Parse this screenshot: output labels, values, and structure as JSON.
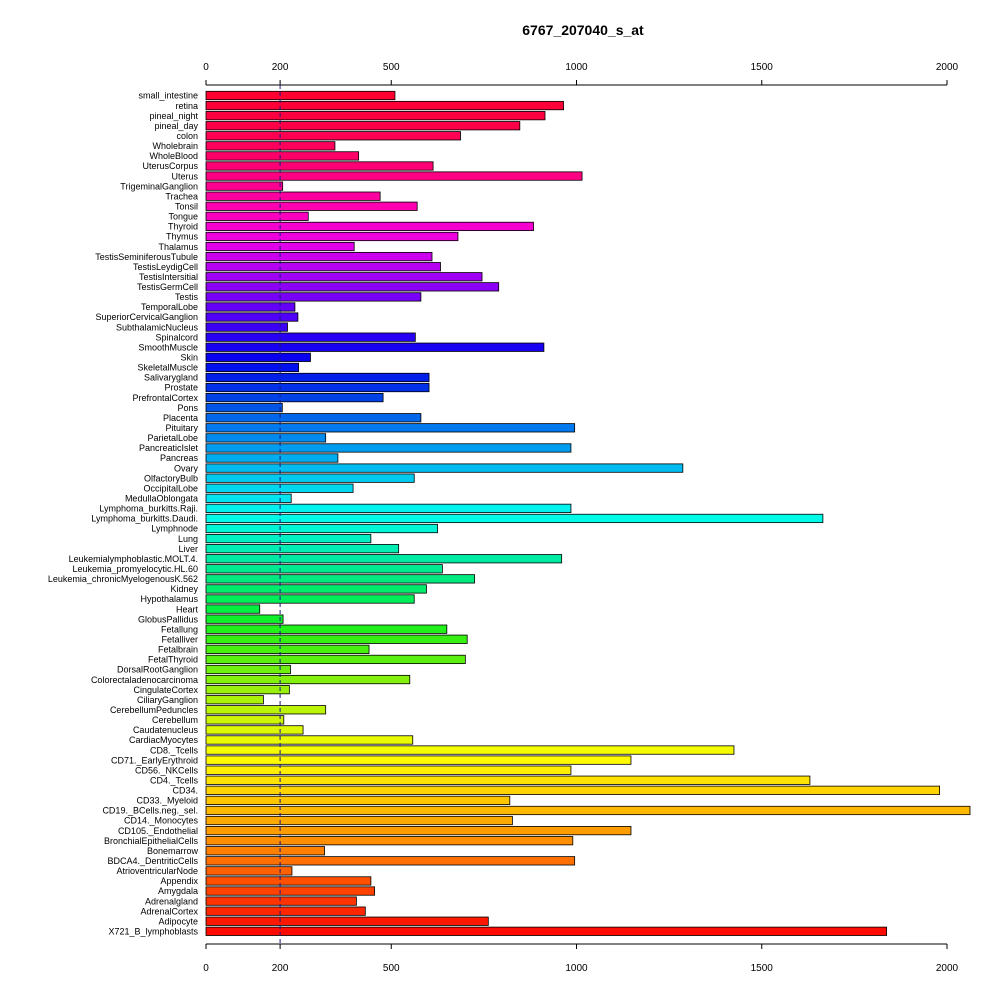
{
  "chart_data": {
    "type": "bar",
    "orientation": "horizontal",
    "title": "6767_207040_s_at",
    "xlabel": "",
    "ylabel": "",
    "xlim": [
      0,
      2000
    ],
    "x_ticks": [
      0,
      200,
      500,
      1000,
      1500,
      2000
    ],
    "reference_line": 200,
    "grid": false,
    "categories": [
      "small_intestine",
      "retina",
      "pineal_night",
      "pineal_day",
      "colon",
      "Wholebrain",
      "WholeBlood",
      "UterusCorpus",
      "Uterus",
      "TrigeminalGanglion",
      "Trachea",
      "Tonsil",
      "Tongue",
      "Thyroid",
      "Thymus",
      "Thalamus",
      "TestisSeminiferousTubule",
      "TestisLeydigCell",
      "TestisIntersitial",
      "TestisGermCell",
      "Testis",
      "TemporalLobe",
      "SuperiorCervicalGanglion",
      "SubthalamicNucleus",
      "Spinalcord",
      "SmoothMuscle",
      "Skin",
      "SkeletalMuscle",
      "Salivarygland",
      "Prostate",
      "PrefrontalCortex",
      "Pons",
      "Placenta",
      "Pituitary",
      "ParietalLobe",
      "PancreaticIslet",
      "Pancreas",
      "Ovary",
      "OlfactoryBulb",
      "OccipitalLobe",
      "MedullaOblongata",
      "Lymphoma_burkitts.Raji.",
      "Lymphoma_burkitts.Daudi.",
      "Lymphnode",
      "Lung",
      "Liver",
      "Leukemialymphoblastic.MOLT.4.",
      "Leukemia_promyelocytic.HL.60",
      "Leukemia_chronicMyelogenousK.562",
      "Kidney",
      "Hypothalamus",
      "Heart",
      "GlobusPallidus",
      "Fetallung",
      "Fetalliver",
      "Fetalbrain",
      "FetalThyroid",
      "DorsalRootGanglion",
      "Colorectaladenocarcinoma",
      "CingulateCortex",
      "CiliaryGanglion",
      "CerebellumPeduncles",
      "Cerebellum",
      "Caudatenucleus",
      "CardiacMyocytes",
      "CD8._Tcells",
      "CD71._EarlyErythroid",
      "CD56._NKCells",
      "CD4._Tcells",
      "CD34.",
      "CD33._Myeloid",
      "CD19._BCells.neg._sel.",
      "CD14._Monocytes",
      "CD105._Endothelial",
      "BronchialEpithelialCells",
      "Bonemarrow",
      "BDCA4._DentriticCells",
      "AtrioventricularNode",
      "Appendix",
      "Amygdala",
      "Adrenalgland",
      "AdrenalCortex",
      "Adipocyte",
      "X721_B_lymphoblasts"
    ],
    "values": [
      510,
      965,
      915,
      847,
      687,
      348,
      412,
      613,
      1015,
      207,
      470,
      570,
      276,
      884,
      680,
      400,
      610,
      633,
      745,
      790,
      580,
      240,
      248,
      220,
      565,
      912,
      282,
      250,
      602,
      602,
      478,
      206,
      580,
      995,
      323,
      985,
      356,
      1287,
      562,
      397,
      230,
      985,
      1665,
      625,
      445,
      520,
      960,
      638,
      725,
      595,
      562,
      145,
      208,
      650,
      705,
      440,
      700,
      228,
      550,
      225,
      155,
      323,
      210,
      262,
      558,
      1425,
      1147,
      985,
      1630,
      1980,
      820,
      2065,
      827,
      1147,
      990,
      320,
      995,
      232,
      445,
      455,
      406,
      430,
      762,
      1837
    ],
    "colors": [
      "#ff0030",
      "#ff0038",
      "#ff0040",
      "#ff0048",
      "#ff0052",
      "#ff005c",
      "#ff0068",
      "#ff0074",
      "#ff0082",
      "#ff0090",
      "#ff00a0",
      "#ff00b0",
      "#fc00c0",
      "#f600d0",
      "#ee00de",
      "#e000ea",
      "#cc00ee",
      "#b600f2",
      "#a000f4",
      "#8c00f6",
      "#7800f8",
      "#6400f8",
      "#5000f8",
      "#3c00f6",
      "#2800f4",
      "#1800f2",
      "#0a00f0",
      "#0010ee",
      "#0020ea",
      "#0030e8",
      "#0042e6",
      "#0054e6",
      "#0066ea",
      "#0078ee",
      "#008aee",
      "#009cf0",
      "#00aef0",
      "#00bcf0",
      "#00caf0",
      "#00d8f0",
      "#00e6f0",
      "#00f2ee",
      "#00fae8",
      "#00f6d4",
      "#00f2c4",
      "#00eeb4",
      "#00eaa4",
      "#00ea92",
      "#00ea80",
      "#00ec6c",
      "#00ee58",
      "#04f040",
      "#10f02a",
      "#22f01a",
      "#36f014",
      "#48f012",
      "#5cf010",
      "#70f010",
      "#84f00e",
      "#98f00c",
      "#aaf20a",
      "#bcf408",
      "#ccf606",
      "#dcf804",
      "#eafa02",
      "#f6fc00",
      "#fffa00",
      "#ffee00",
      "#ffe200",
      "#ffd400",
      "#ffc600",
      "#ffb800",
      "#ffaa00",
      "#ff9c00",
      "#ff8e00",
      "#ff8000",
      "#ff7000",
      "#ff6000",
      "#ff5000",
      "#ff4200",
      "#ff3400",
      "#ff2600",
      "#ff1800",
      "#ff0a00"
    ]
  }
}
